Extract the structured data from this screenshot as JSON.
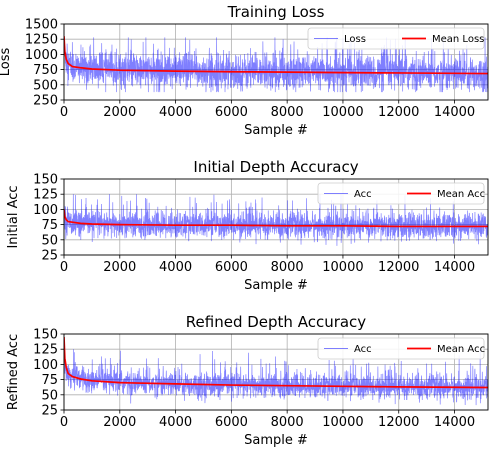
{
  "chart_data": [
    {
      "type": "line",
      "title": "Training Loss",
      "xlabel": "Sample #",
      "ylabel": "Loss",
      "xlim": [
        0,
        15200
      ],
      "ylim": [
        250,
        1500
      ],
      "xticks": [
        0,
        2000,
        4000,
        6000,
        8000,
        10000,
        12000,
        14000
      ],
      "yticks": [
        250,
        500,
        750,
        1000,
        1250,
        1500
      ],
      "grid": true,
      "legend_position": "top-right",
      "series": [
        {
          "name": "Loss",
          "color": "#0000ff",
          "style": "raw-noisy",
          "mean_level": 720,
          "noise_spread": 170,
          "range": [
            380,
            1280
          ]
        },
        {
          "name": "Mean Loss",
          "color": "#ff0000",
          "style": "running-mean",
          "x": [
            0,
            30,
            80,
            150,
            300,
            600,
            1000,
            2000,
            4000,
            6000,
            8000,
            10000,
            12000,
            15200
          ],
          "y": [
            1300,
            1050,
            920,
            850,
            800,
            780,
            760,
            740,
            725,
            715,
            708,
            700,
            695,
            685
          ]
        }
      ]
    },
    {
      "type": "line",
      "title": "Initial Depth Accuracy",
      "xlabel": "Sample #",
      "ylabel": "Initial Acc",
      "xlim": [
        0,
        15200
      ],
      "ylim": [
        25,
        150
      ],
      "xticks": [
        0,
        2000,
        4000,
        6000,
        8000,
        10000,
        12000,
        14000
      ],
      "yticks": [
        25,
        50,
        75,
        100,
        125,
        150
      ],
      "grid": true,
      "legend_position": "top-right",
      "series": [
        {
          "name": "Acc",
          "color": "#0000ff",
          "style": "raw-noisy",
          "mean_level": 74,
          "noise_spread": 13,
          "range": [
            40,
            125
          ]
        },
        {
          "name": "Mean Acc",
          "color": "#ff0000",
          "style": "running-mean",
          "x": [
            0,
            30,
            80,
            150,
            300,
            600,
            1000,
            2000,
            4000,
            6000,
            8000,
            10000,
            12000,
            15200
          ],
          "y": [
            100,
            88,
            83,
            80,
            79,
            77,
            76,
            75,
            74,
            74,
            73,
            73,
            72,
            72
          ]
        }
      ]
    },
    {
      "type": "line",
      "title": "Refined Depth Accuracy",
      "xlabel": "Sample #",
      "ylabel": "Refined Acc",
      "xlim": [
        0,
        15200
      ],
      "ylim": [
        25,
        150
      ],
      "xticks": [
        0,
        2000,
        4000,
        6000,
        8000,
        10000,
        12000,
        14000
      ],
      "yticks": [
        25,
        50,
        75,
        100,
        125,
        150
      ],
      "grid": true,
      "legend_position": "top-right",
      "series": [
        {
          "name": "Acc",
          "color": "#0000ff",
          "style": "raw-noisy",
          "mean_level": 62,
          "noise_spread": 12,
          "range": [
            33,
            125
          ]
        },
        {
          "name": "Mean Acc",
          "color": "#ff0000",
          "style": "running-mean",
          "x": [
            0,
            30,
            80,
            150,
            300,
            600,
            1000,
            2000,
            4000,
            6000,
            8000,
            10000,
            12000,
            15200
          ],
          "y": [
            145,
            110,
            95,
            85,
            80,
            76,
            73,
            70,
            68,
            66,
            65,
            64,
            63,
            62
          ]
        }
      ]
    }
  ]
}
